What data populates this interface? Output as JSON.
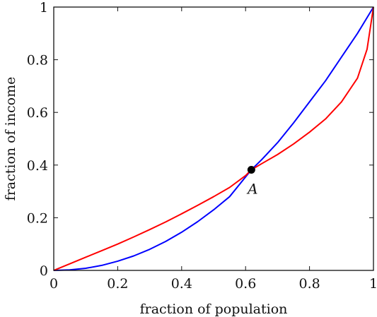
{
  "chart_data": {
    "type": "line",
    "xlabel": "fraction of population",
    "ylabel": "fraction of income",
    "xlim": [
      0,
      1
    ],
    "ylim": [
      0,
      1
    ],
    "x_ticks": [
      "0",
      "0.2",
      "0.4",
      "0.6",
      "0.8",
      "1"
    ],
    "y_ticks": [
      "0",
      "0.2",
      "0.4",
      "0.6",
      "0.8",
      "1"
    ],
    "grid": false,
    "series": [
      {
        "color": "#0000ff",
        "x": [
          0,
          0.05,
          0.1,
          0.15,
          0.2,
          0.25,
          0.3,
          0.35,
          0.4,
          0.45,
          0.5,
          0.55,
          0.6,
          0.618,
          0.65,
          0.7,
          0.75,
          0.8,
          0.85,
          0.9,
          0.95,
          1
        ],
        "y": [
          0,
          0.002,
          0.008,
          0.019,
          0.035,
          0.055,
          0.08,
          0.11,
          0.145,
          0.185,
          0.23,
          0.28,
          0.355,
          0.382,
          0.42,
          0.485,
          0.56,
          0.64,
          0.72,
          0.81,
          0.9,
          1
        ]
      },
      {
        "color": "#ff0000",
        "x": [
          0,
          0.05,
          0.1,
          0.15,
          0.2,
          0.25,
          0.3,
          0.35,
          0.4,
          0.45,
          0.5,
          0.55,
          0.6,
          0.618,
          0.65,
          0.7,
          0.75,
          0.8,
          0.85,
          0.9,
          0.95,
          0.98,
          1
        ],
        "y": [
          0,
          0.025,
          0.05,
          0.075,
          0.1,
          0.127,
          0.155,
          0.184,
          0.215,
          0.247,
          0.28,
          0.315,
          0.36,
          0.382,
          0.405,
          0.44,
          0.48,
          0.525,
          0.575,
          0.64,
          0.73,
          0.84,
          1
        ]
      }
    ],
    "points": [
      {
        "label": "A",
        "x": 0.618,
        "y": 0.382,
        "color": "#000000"
      }
    ]
  }
}
